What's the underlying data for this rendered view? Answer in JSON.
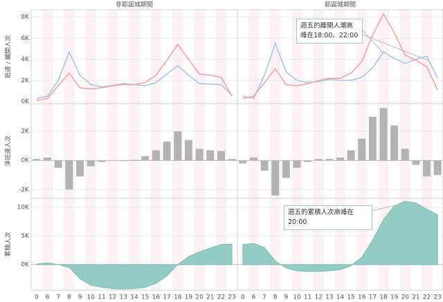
{
  "facets": [
    "非耶誕城期間",
    "耶誕城期間"
  ],
  "categories": [
    "0",
    "6",
    "7",
    "8",
    "9",
    "10",
    "11",
    "12",
    "13",
    "14",
    "15",
    "16",
    "17",
    "18",
    "19",
    "20",
    "21",
    "22",
    "23"
  ],
  "chart_data": [
    {
      "type": "line",
      "y_label": "抵達 / 離開人次",
      "ylim": [
        -200,
        8700
      ],
      "yticks": [
        {
          "value": 0,
          "label": "0K"
        },
        {
          "value": 2000,
          "label": "2K"
        },
        {
          "value": 4000,
          "label": "4K"
        },
        {
          "value": 6000,
          "label": "6K"
        },
        {
          "value": 8000,
          "label": "8K"
        }
      ],
      "grid": true,
      "annotation": "週五的離開人潮高峰在18:00、22:00",
      "panels": [
        {
          "series": [
            {
              "color": "#a3c8e8",
              "values": [
                300,
                500,
                2000,
                4700,
                2500,
                1600,
                1400,
                1500,
                1700,
                1600,
                1500,
                1800,
                2600,
                3400,
                2500,
                1700,
                1650,
                1600,
                600
              ]
            },
            {
              "color": "#f4a3a3",
              "values": [
                100,
                300,
                1500,
                2700,
                1300,
                1200,
                1300,
                1500,
                1600,
                1600,
                1800,
                2500,
                3900,
                5400,
                4000,
                2600,
                2500,
                2300,
                500
              ]
            }
          ]
        },
        {
          "series": [
            {
              "color": "#a3c8e8",
              "values": [
                500,
                300,
                2500,
                5500,
                2800,
                2000,
                1800,
                1900,
                2100,
                2000,
                2000,
                2300,
                3200,
                4700,
                4100,
                3600,
                4000,
                4300,
                2200
              ]
            },
            {
              "color": "#f4a3a3",
              "values": [
                300,
                500,
                1800,
                3100,
                1600,
                1500,
                1700,
                2000,
                2200,
                2200,
                2700,
                3800,
                6300,
                8300,
                6500,
                4400,
                3900,
                3300,
                1100
              ]
            }
          ]
        }
      ]
    },
    {
      "type": "bar",
      "y_label": "淨抵達人次",
      "ylim": [
        -2600,
        3900
      ],
      "yticks": [
        {
          "value": -2000,
          "label": "-2K"
        },
        {
          "value": 0,
          "label": "0K"
        },
        {
          "value": 2000,
          "label": "2K"
        }
      ],
      "grid": true,
      "panels": [
        {
          "color": "#b3b3b3",
          "values": [
            100,
            200,
            -500,
            -2000,
            -1100,
            -400,
            -100,
            0,
            -50,
            50,
            300,
            700,
            1300,
            2000,
            1400,
            800,
            700,
            650,
            100
          ]
        },
        {
          "color": "#b3b3b3",
          "values": [
            -200,
            200,
            -700,
            -2400,
            -1200,
            -500,
            -100,
            100,
            100,
            200,
            700,
            1500,
            3000,
            3600,
            2400,
            800,
            -300,
            -1100,
            -1000
          ]
        }
      ]
    },
    {
      "type": "area",
      "y_label": "累積人次",
      "ylim": [
        -4500,
        11600
      ],
      "yticks": [
        {
          "value": 0,
          "label": "0K"
        },
        {
          "value": 5000,
          "label": "5K"
        },
        {
          "value": 10000,
          "label": "10K"
        }
      ],
      "grid": true,
      "annotation": "週五的累積人次高峰在20:00",
      "panels": [
        {
          "color": "#93ccc3",
          "values": [
            100,
            300,
            0,
            -500,
            -2500,
            -3600,
            -4000,
            -4200,
            -4300,
            -4200,
            -4000,
            -3300,
            -2000,
            0,
            1400,
            2200,
            2900,
            3500,
            3600
          ]
        },
        {
          "color": "#93ccc3",
          "values": [
            3500,
            3700,
            3000,
            600,
            -600,
            -1100,
            -1200,
            -1200,
            -1100,
            -900,
            -200,
            1300,
            4300,
            7900,
            10300,
            11100,
            10800,
            9700,
            8700
          ]
        }
      ]
    }
  ]
}
